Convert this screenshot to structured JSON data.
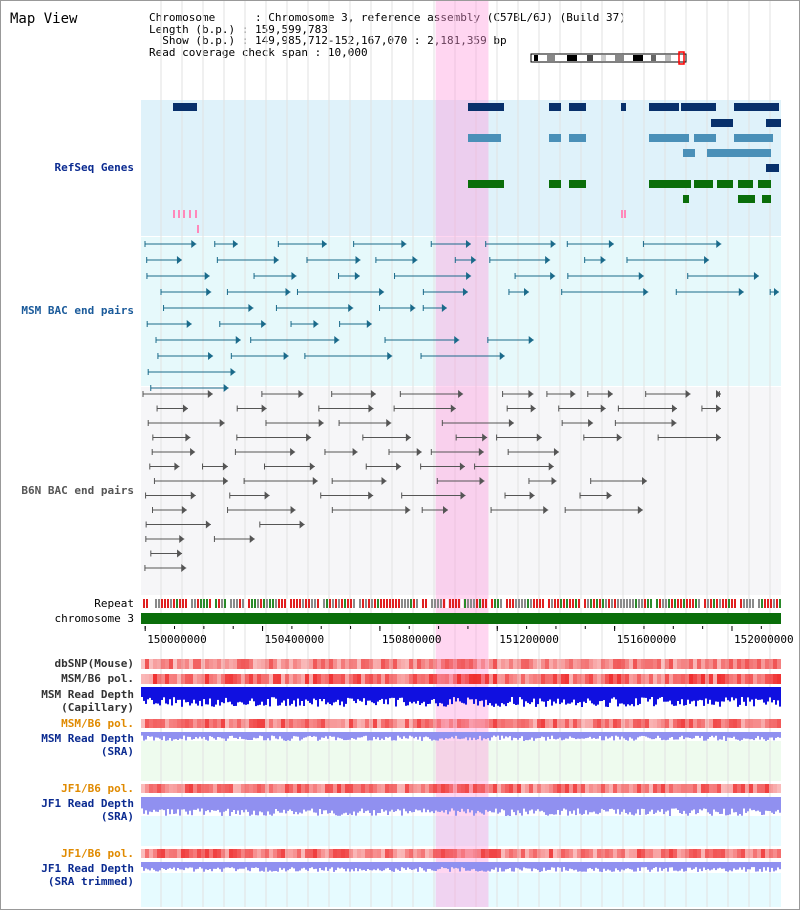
{
  "title": "Map View",
  "info": {
    "chromosome_key": "Chromosome",
    "chromosome_val": "Chromosome 3, reference assembly (C57BL/6J) (Build 37)",
    "length_key": "Length (b.p.)",
    "length_val": "159,599,783",
    "show_key": "Show (b.p.)",
    "show_val": "149,985,712-152,167,070 : 2,181,359 bp",
    "coverage_key": "Read coverage check span",
    "coverage_val": "10,000"
  },
  "labels": {
    "refseq": "RefSeq Genes",
    "msm_bac": "MSM BAC end pairs",
    "b6n_bac": "B6N BAC end pairs",
    "repeat": "Repeat",
    "chromosome": "chromosome 3",
    "dbsnp": "dbSNP(Mouse)",
    "msm_b6_pol": "MSM/B6 pol.",
    "msm_depth_1": "MSM Read Depth",
    "msm_depth_2": "(Capillary)",
    "msm_b6_pol_sra": "MSM/B6 pol.",
    "msm_sra_1": "MSM Read Depth",
    "msm_sra_2": "(SRA)",
    "jf1_pol": "JF1/B6 pol.",
    "jf1_depth_1": "JF1 Read Depth",
    "jf1_depth_2": "(SRA)",
    "jf1_pol_trim": "JF1/B6 pol.",
    "jf1_trim_1": "JF1 Read Depth",
    "jf1_trim_2": "(SRA trimmed)"
  },
  "axis": {
    "ticks": [
      "150000000",
      "150400000",
      "150800000",
      "151200000",
      "151600000",
      "152000000"
    ],
    "tick_values": [
      150000000,
      150400000,
      150800000,
      151200000,
      151600000,
      152000000
    ],
    "start_bp": 149985712,
    "end_bp": 152167070
  },
  "highlight": {
    "start_bp": 150990000,
    "end_bp": 151170000
  },
  "colors": {
    "refseq_bg": "#dff2fa",
    "refseq_dark": "#08306b",
    "refseq_mid": "#4a90b8",
    "refseq_green": "#0a6e0a",
    "msm_bg": "#e6f9fb",
    "msm_line": "#1a6a8a",
    "b6n_bg": "#f6f6f8",
    "b6n_line": "#555555",
    "highlight": "#ff99dd",
    "chromosome_bar": "#0a6e0a",
    "pol_red": "#ff4040",
    "depth_blue": "#1010e0",
    "depth_light": "#9090f0",
    "sra_bg": "#eefbee",
    "jf1_bg": "#e6fbff"
  }
}
